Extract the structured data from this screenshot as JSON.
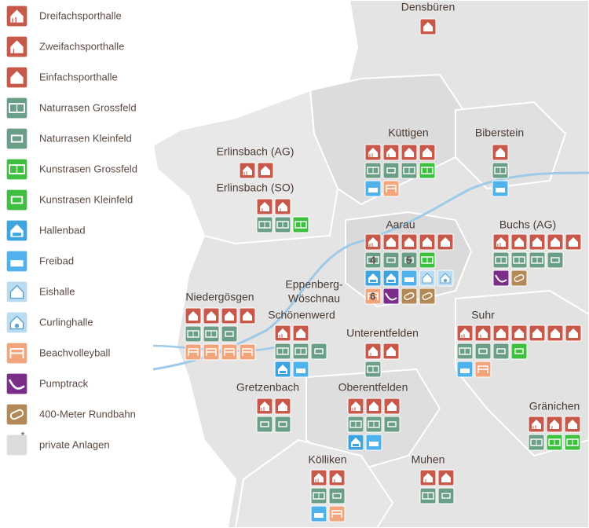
{
  "legend": {
    "items": [
      "Dreifachsporthalle",
      "Zweifachsporthalle",
      "Einfachsporthalle",
      "Naturrasen Grossfeld",
      "Naturrasen Kleinfeld",
      "Kunstrasen Grossfeld",
      "Kunstrasen Kleinfeld",
      "Hallenbad",
      "Freibad",
      "Eishalle",
      "Curlinghalle",
      "Beachvolleyball",
      "Pumptrack",
      "400-Meter Rundbahn",
      "private Anlagen"
    ],
    "private_marker": "*"
  },
  "towns": [
    {
      "name": "Densbüren"
    },
    {
      "name": "Küttigen"
    },
    {
      "name": "Biberstein"
    },
    {
      "name": "Erlinsbach (AG)"
    },
    {
      "name": "Erlinsbach (SO)"
    },
    {
      "name": "Aarau",
      "badges": [
        4,
        5,
        6
      ]
    },
    {
      "name": "Buchs (AG)"
    },
    {
      "name_lines": [
        "Eppenberg-",
        "Wöschnau"
      ]
    },
    {
      "name": "Schönenwerd"
    },
    {
      "name": "Niedergösgen"
    },
    {
      "name": "Unterentfelden"
    },
    {
      "name": "Suhr"
    },
    {
      "name": "Gretzenbach"
    },
    {
      "name": "Oberentfelden"
    },
    {
      "name": "Gränichen"
    },
    {
      "name": "Kölliken"
    },
    {
      "name": "Muhen"
    }
  ]
}
